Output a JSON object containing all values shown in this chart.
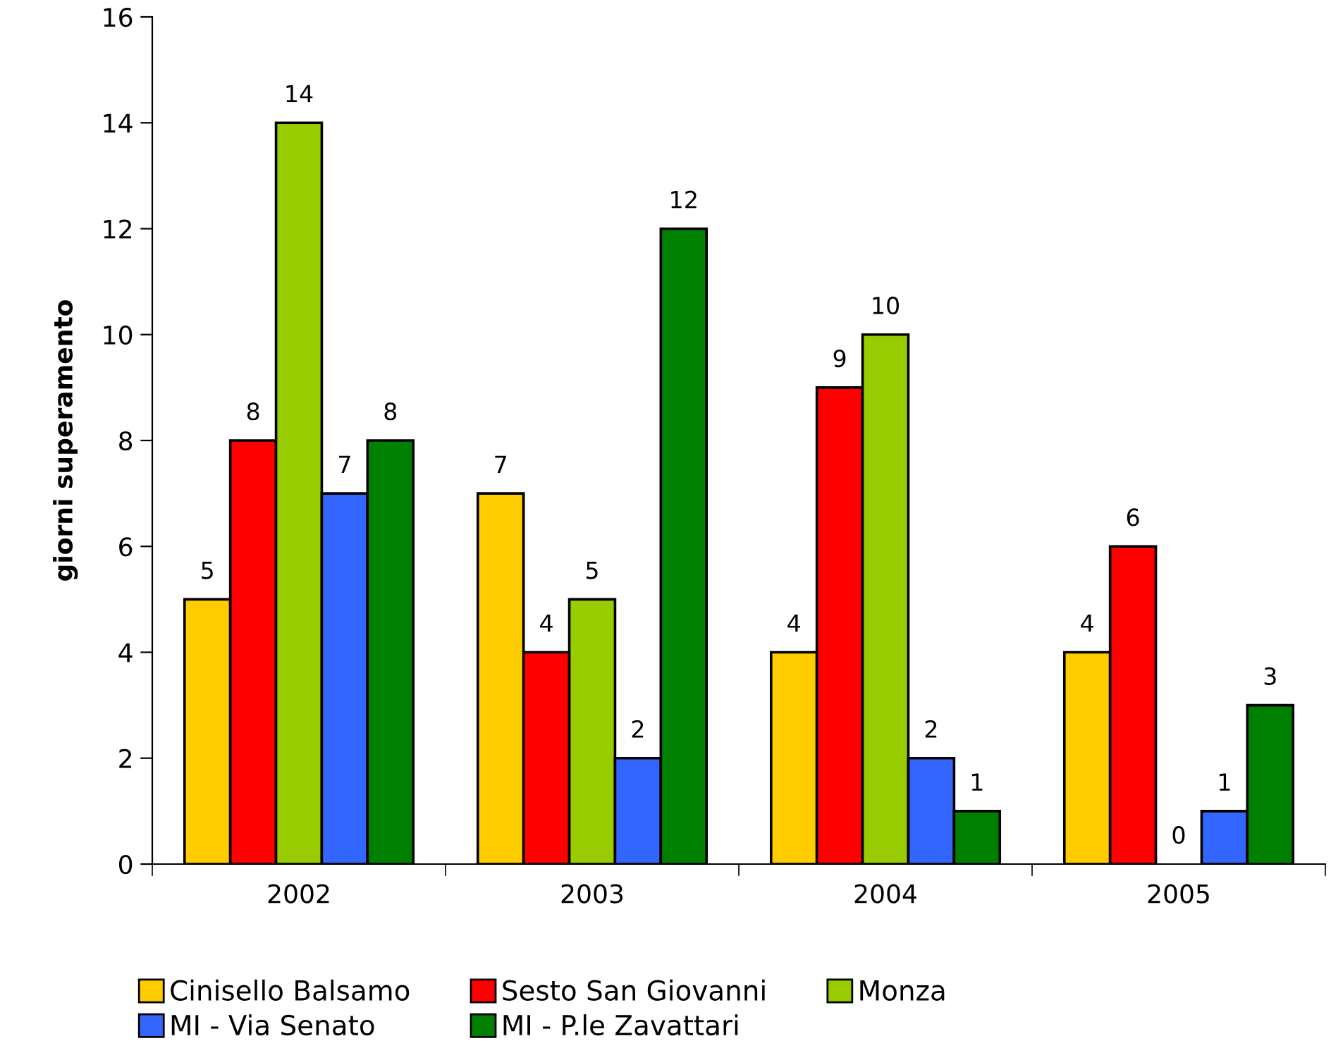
{
  "chart_data": {
    "type": "bar",
    "ylabel": "giorni superamento",
    "categories": [
      "2002",
      "2003",
      "2004",
      "2005"
    ],
    "series": [
      {
        "name": "Cinisello Balsamo",
        "color": "#ffcc00",
        "values": [
          5,
          7,
          4,
          4
        ]
      },
      {
        "name": "Sesto San Giovanni",
        "color": "#ff0000",
        "values": [
          8,
          4,
          9,
          6
        ]
      },
      {
        "name": "Monza",
        "color": "#99cc00",
        "values": [
          14,
          5,
          10,
          0
        ]
      },
      {
        "name": "MI - Via Senato",
        "color": "#3366ff",
        "values": [
          7,
          2,
          2,
          1
        ]
      },
      {
        "name": "MI - P.le Zavattari",
        "color": "#008000",
        "values": [
          8,
          12,
          1,
          3
        ]
      }
    ],
    "ylim": [
      0,
      16
    ],
    "yticks": [
      0,
      2,
      4,
      6,
      8,
      10,
      12,
      14,
      16
    ],
    "grid": false,
    "legend": "bottom",
    "data_labels": true
  }
}
